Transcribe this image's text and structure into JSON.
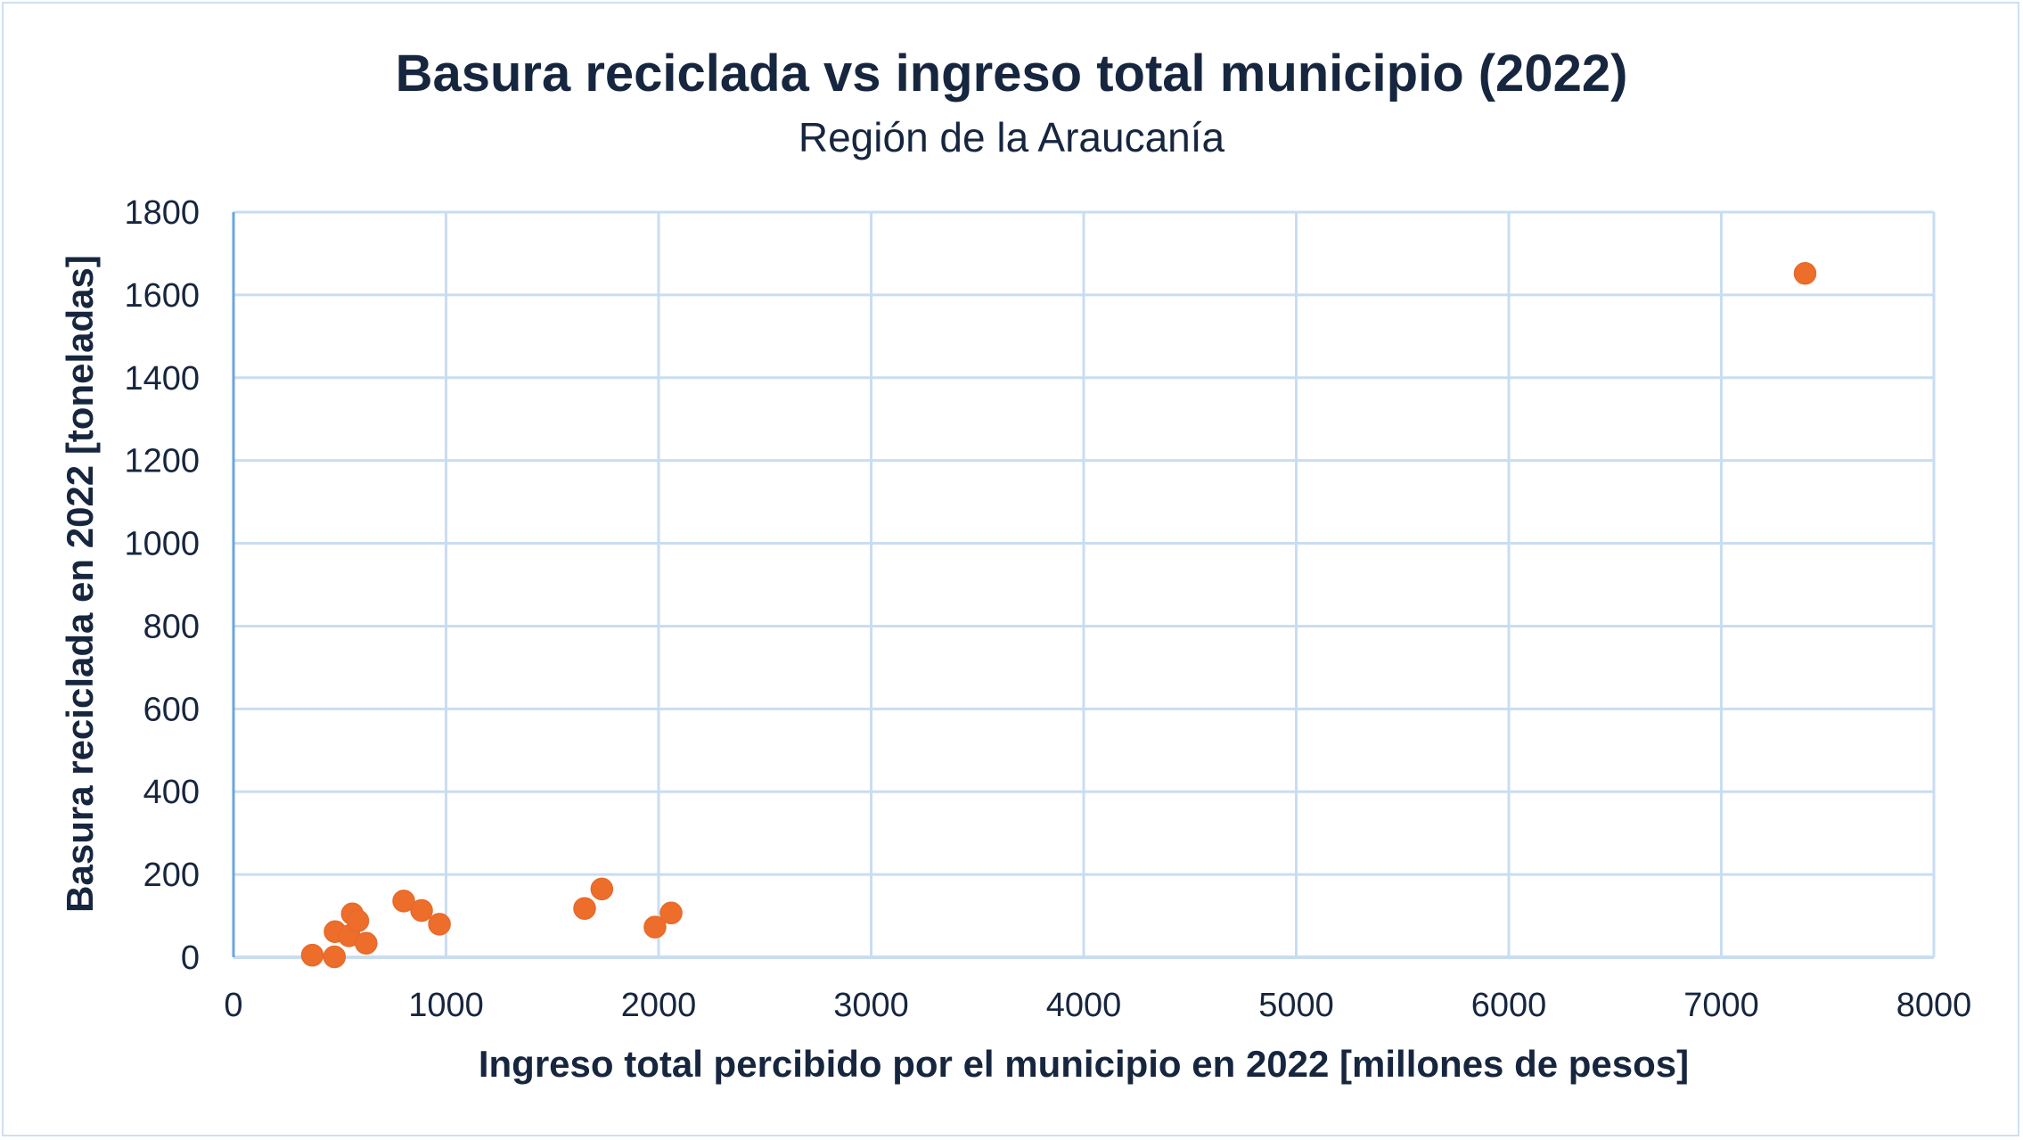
{
  "chart_data": {
    "type": "scatter",
    "title": "Basura reciclada vs ingreso total municipio (2022)",
    "subtitle": "Región de la Araucanía",
    "xlabel": "Ingreso total percibido por el municipio en 2022 [millones de pesos]",
    "ylabel": "Basura reciclada en 2022 [toneladas]",
    "xlim": [
      0,
      8000
    ],
    "ylim": [
      0,
      1800
    ],
    "xticks": [
      "0",
      "1000",
      "2000",
      "3000",
      "4000",
      "5000",
      "6000",
      "7000",
      "8000"
    ],
    "yticks": [
      "0",
      "200",
      "400",
      "600",
      "800",
      "1000",
      "1200",
      "1400",
      "1600",
      "1800"
    ],
    "grid": true,
    "marker_color": "#ED6D2B",
    "points": [
      {
        "x": 371,
        "y": 5
      },
      {
        "x": 475,
        "y": 1
      },
      {
        "x": 478,
        "y": 62
      },
      {
        "x": 544,
        "y": 52
      },
      {
        "x": 624,
        "y": 34
      },
      {
        "x": 559,
        "y": 105
      },
      {
        "x": 585,
        "y": 88
      },
      {
        "x": 801,
        "y": 136
      },
      {
        "x": 885,
        "y": 113
      },
      {
        "x": 969,
        "y": 80
      },
      {
        "x": 1652,
        "y": 118
      },
      {
        "x": 1733,
        "y": 165
      },
      {
        "x": 1983,
        "y": 73
      },
      {
        "x": 2059,
        "y": 107
      },
      {
        "x": 7394,
        "y": 1652
      }
    ]
  }
}
